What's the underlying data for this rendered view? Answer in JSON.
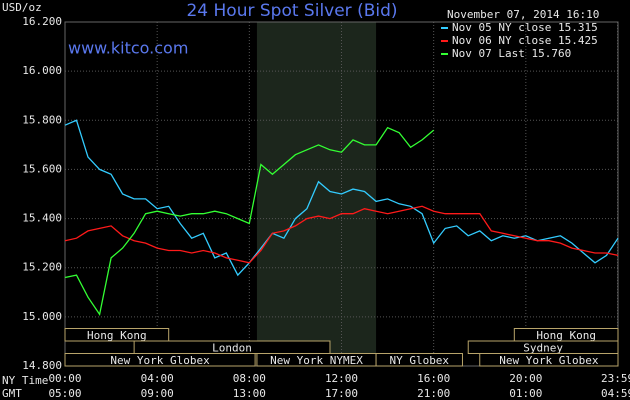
{
  "chart_data": {
    "type": "line",
    "title": "24 Hour Spot Silver (Bid)",
    "source": "www.kitco.com",
    "timestamp": "November 07, 2014 16:10",
    "y_label": "USD/oz",
    "x_label": "NY Time",
    "x2_label": "GMT",
    "x": [
      0,
      0.5,
      1,
      1.5,
      2,
      2.5,
      3,
      3.5,
      4,
      4.5,
      5,
      5.5,
      6,
      6.5,
      7,
      7.5,
      8,
      8.5,
      9,
      9.5,
      10,
      10.5,
      11,
      11.5,
      12,
      12.5,
      13,
      13.5,
      14,
      14.5,
      15,
      15.5,
      16,
      16.5,
      17,
      17.5,
      18,
      18.5,
      19,
      19.5,
      20,
      20.5,
      21,
      21.5,
      22,
      22.5,
      23,
      23.5,
      24
    ],
    "series": [
      {
        "name": "Nov 05 NY close 15.315",
        "color": "#33ccff",
        "values": [
          15.78,
          15.8,
          15.65,
          15.6,
          15.58,
          15.5,
          15.48,
          15.48,
          15.44,
          15.45,
          15.38,
          15.32,
          15.34,
          15.24,
          15.26,
          15.17,
          15.22,
          15.28,
          15.34,
          15.32,
          15.4,
          15.44,
          15.55,
          15.51,
          15.5,
          15.52,
          15.51,
          15.47,
          15.48,
          15.46,
          15.45,
          15.42,
          15.3,
          15.36,
          15.37,
          15.33,
          15.35,
          15.31,
          15.33,
          15.32,
          15.33,
          15.31,
          15.32,
          15.33,
          15.3,
          15.26,
          15.22,
          15.25,
          15.32
        ]
      },
      {
        "name": "Nov 06 NY close 15.425",
        "color": "#ff1a1a",
        "values": [
          15.31,
          15.32,
          15.35,
          15.36,
          15.37,
          15.33,
          15.31,
          15.3,
          15.28,
          15.27,
          15.27,
          15.26,
          15.27,
          15.26,
          15.24,
          15.23,
          15.22,
          15.27,
          15.34,
          15.35,
          15.37,
          15.4,
          15.41,
          15.4,
          15.42,
          15.42,
          15.44,
          15.43,
          15.42,
          15.43,
          15.44,
          15.45,
          15.43,
          15.42,
          15.42,
          15.42,
          15.42,
          15.35,
          15.34,
          15.33,
          15.32,
          15.31,
          15.31,
          15.3,
          15.28,
          15.27,
          15.26,
          15.26,
          15.25
        ]
      },
      {
        "name": "Nov 07 Last 15.760",
        "color": "#33ff33",
        "values": [
          15.16,
          15.17,
          15.08,
          15.01,
          15.24,
          15.28,
          15.34,
          15.42,
          15.43,
          15.42,
          15.41,
          15.42,
          15.42,
          15.43,
          15.42,
          15.4,
          15.38,
          15.62,
          15.58,
          15.62,
          15.66,
          15.68,
          15.7,
          15.68,
          15.67,
          15.72,
          15.7,
          15.7,
          15.77,
          15.75,
          15.69,
          15.72,
          15.76,
          null,
          null,
          null,
          null,
          null,
          null,
          null,
          null,
          null,
          null,
          null,
          null,
          null,
          null,
          null,
          null
        ]
      }
    ],
    "xlim": [
      0,
      24
    ],
    "xticks": [
      {
        "value": 0,
        "label": "00:00"
      },
      {
        "value": 4,
        "label": "04:00"
      },
      {
        "value": 8,
        "label": "08:00"
      },
      {
        "value": 12,
        "label": "12:00"
      },
      {
        "value": 16,
        "label": "16:00"
      },
      {
        "value": 20,
        "label": "20:00"
      },
      {
        "value": 23.98,
        "label": "23:59"
      }
    ],
    "x2ticks": [
      {
        "value": 0,
        "label": "05:00"
      },
      {
        "value": 4,
        "label": "09:00"
      },
      {
        "value": 8,
        "label": "13:00"
      },
      {
        "value": 12,
        "label": "17:00"
      },
      {
        "value": 16,
        "label": "21:00"
      },
      {
        "value": 20,
        "label": "01:00"
      },
      {
        "value": 23.98,
        "label": "04:59"
      }
    ],
    "ylim": [
      14.8,
      16.2
    ],
    "yticks": [
      {
        "value": 14.8,
        "label": "14.800"
      },
      {
        "value": 15,
        "label": "15.000"
      },
      {
        "value": 15.2,
        "label": "15.200"
      },
      {
        "value": 15.4,
        "label": "15.400"
      },
      {
        "value": 15.6,
        "label": "15.600"
      },
      {
        "value": 15.8,
        "label": "15.800"
      },
      {
        "value": 16,
        "label": "16.000"
      },
      {
        "value": 16.2,
        "label": "16.200"
      }
    ],
    "grid": true,
    "session_rows": [
      [
        {
          "label": "Hong Kong",
          "start": 0,
          "end": 4.5
        },
        {
          "label": "Hong Kong",
          "start": 19.5,
          "end": 24
        }
      ],
      [
        {
          "label": "London",
          "start": 3,
          "end": 11.5
        },
        {
          "label": "Sydney",
          "start": 17.5,
          "end": 24
        }
      ],
      [
        {
          "label": "New York Globex",
          "start": 0,
          "end": 8.25
        },
        {
          "label": "New York NYMEX",
          "start": 8.33,
          "end": 13.5,
          "shaded": true
        },
        {
          "label": "NY Globex",
          "start": 13.5,
          "end": 17.25
        },
        {
          "label": "New York Globex",
          "start": 18,
          "end": 24
        }
      ]
    ]
  }
}
